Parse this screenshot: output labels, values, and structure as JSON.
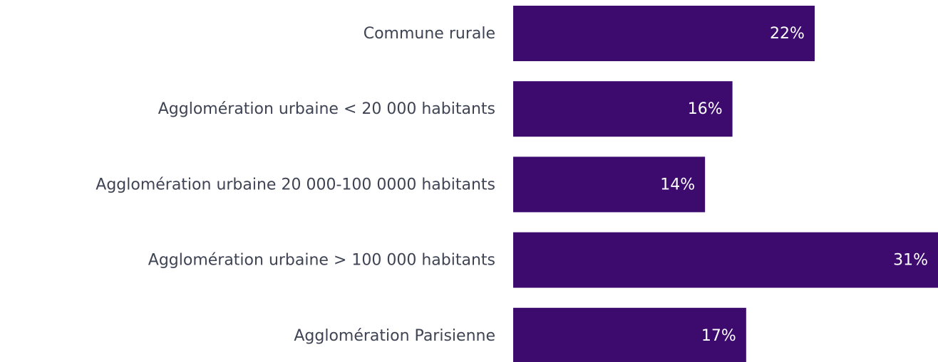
{
  "chart_data": {
    "type": "bar",
    "orientation": "horizontal",
    "categories": [
      "Commune rurale",
      "Agglomération urbaine < 20 000 habitants",
      "Agglomération urbaine 20 000-100 0000 habitants",
      "Agglomération urbaine > 100 000 habitants",
      "Agglomération Parisienne"
    ],
    "values": [
      22,
      16,
      14,
      31,
      17
    ],
    "value_labels": [
      "22%",
      "16%",
      "14%",
      "31%",
      "17%"
    ],
    "color": "#3d0a6e"
  }
}
